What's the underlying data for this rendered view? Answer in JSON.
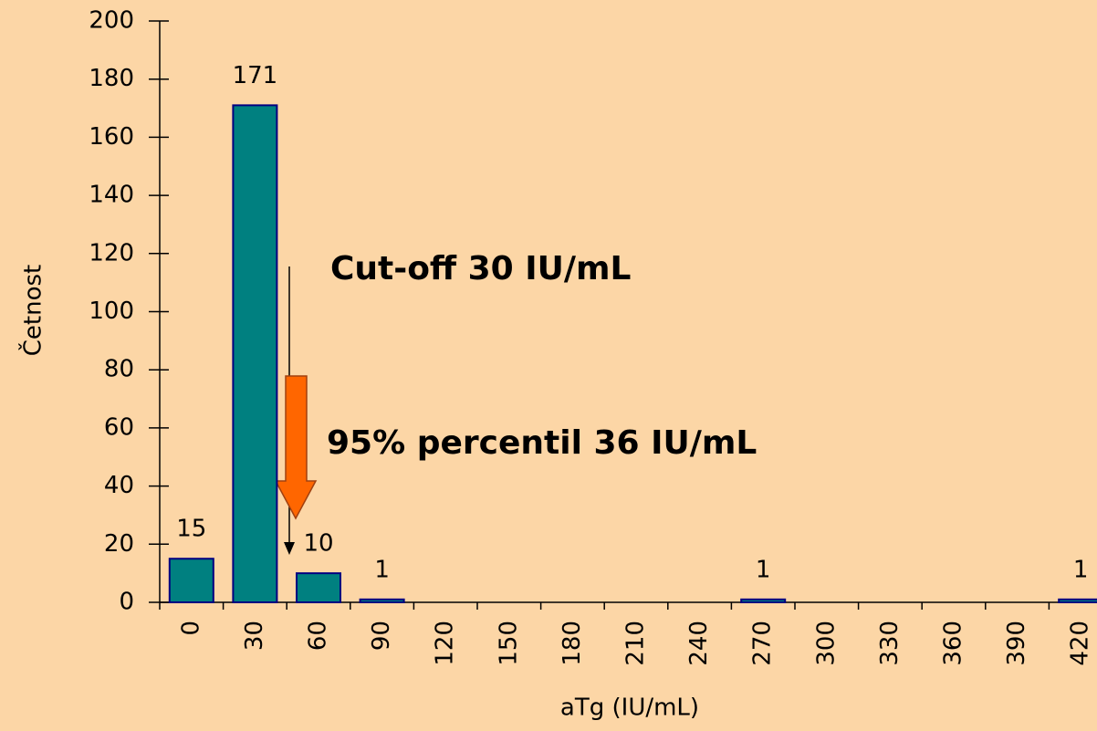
{
  "chart_data": {
    "type": "bar",
    "x_label": "aTg (IU/mL)",
    "y_label": "Četnost",
    "categories": [
      "0",
      "30",
      "60",
      "90",
      "120",
      "150",
      "180",
      "210",
      "240",
      "270",
      "300",
      "330",
      "360",
      "390",
      "420"
    ],
    "values": [
      15,
      171,
      10,
      1,
      0,
      0,
      0,
      0,
      0,
      1,
      0,
      0,
      0,
      0,
      1
    ],
    "color": "#008080",
    "edge_color": "#000080",
    "ylim": [
      0,
      200
    ],
    "yticks": [
      0,
      20,
      40,
      60,
      80,
      100,
      120,
      140,
      160,
      180,
      200
    ],
    "annotations": [
      "Cut-off 30 IU/mL",
      "95% percentil 36 IU/mL"
    ]
  }
}
